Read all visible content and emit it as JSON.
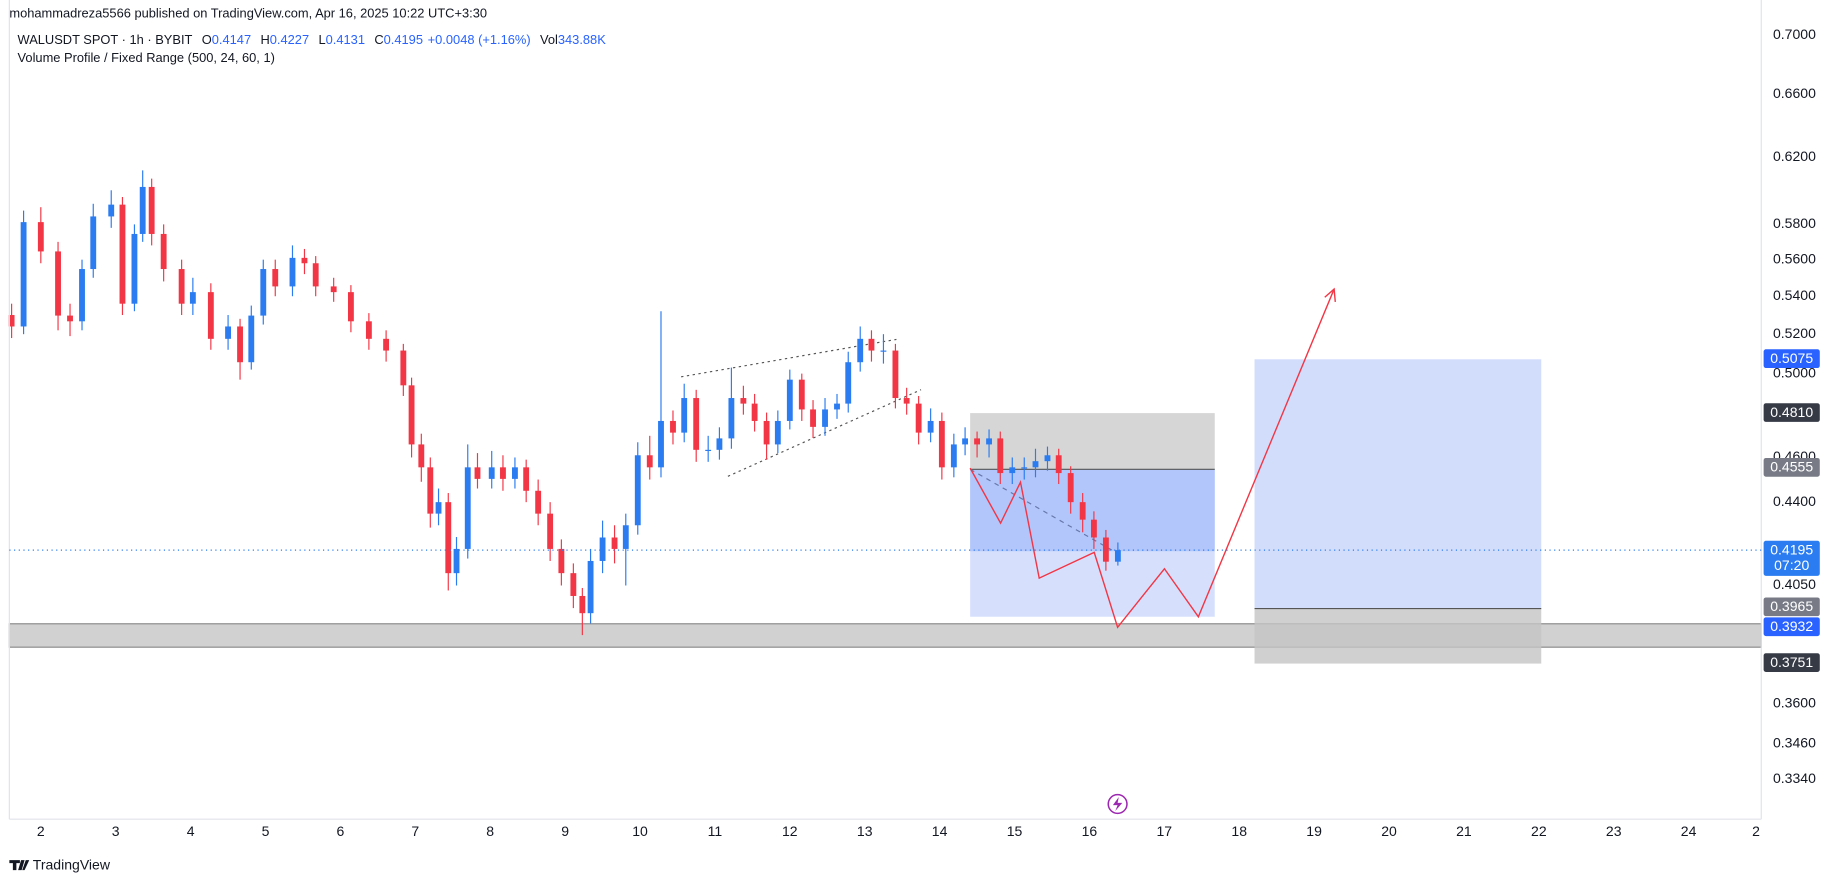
{
  "header": {
    "publisher": "mohammadreza5566 published on TradingView.com, Apr 16, 2025 10:22 UTC+3:30",
    "symbol": "WALUSDT SPOT · 1h · BYBIT",
    "o_label": "O",
    "h_label": "H",
    "l_label": "L",
    "c_label": "C",
    "change": "+0.0048 (+1.16%)",
    "vol_label": "Vol",
    "volume": "343.88K",
    "indicator": "Volume Profile / Fixed Range (500, 24, 60, 1)"
  },
  "footer": {
    "brand": "TradingView"
  },
  "chart_data": {
    "type": "candlestick",
    "log_scale": true,
    "grid": false,
    "up_color": "#2a7cf0",
    "down_color": "#f23645",
    "xlim": [
      -0.42,
      22.97
    ],
    "ylim": [
      0.321,
      0.725
    ],
    "xticks": [
      {
        "value": 0,
        "label": "2"
      },
      {
        "value": 1,
        "label": "3"
      },
      {
        "value": 2,
        "label": "4"
      },
      {
        "value": 3,
        "label": "5"
      },
      {
        "value": 4,
        "label": "6"
      },
      {
        "value": 5,
        "label": "7"
      },
      {
        "value": 6,
        "label": "8"
      },
      {
        "value": 7,
        "label": "9"
      },
      {
        "value": 8,
        "label": "10"
      },
      {
        "value": 9,
        "label": "11"
      },
      {
        "value": 10,
        "label": "12"
      },
      {
        "value": 11,
        "label": "13"
      },
      {
        "value": 12,
        "label": "14"
      },
      {
        "value": 13,
        "label": "15"
      },
      {
        "value": 14,
        "label": "16"
      },
      {
        "value": 15,
        "label": "17"
      },
      {
        "value": 16,
        "label": "18"
      },
      {
        "value": 17,
        "label": "19"
      },
      {
        "value": 18,
        "label": "20"
      },
      {
        "value": 19,
        "label": "21"
      },
      {
        "value": 20,
        "label": "22"
      },
      {
        "value": 21,
        "label": "23"
      },
      {
        "value": 22,
        "label": "24"
      },
      {
        "value": 22.9,
        "label": "2"
      }
    ],
    "yticks": [
      {
        "value": 0.7,
        "label": "0.7000"
      },
      {
        "value": 0.66,
        "label": "0.6600"
      },
      {
        "value": 0.62,
        "label": "0.6200"
      },
      {
        "value": 0.58,
        "label": "0.5800"
      },
      {
        "value": 0.56,
        "label": "0.5600"
      },
      {
        "value": 0.54,
        "label": "0.5400"
      },
      {
        "value": 0.52,
        "label": "0.5200"
      },
      {
        "value": 0.5,
        "label": "0.5000"
      },
      {
        "value": 0.46,
        "label": "0.4600"
      },
      {
        "value": 0.44,
        "label": "0.4400"
      },
      {
        "value": 0.405,
        "label": "0.4050"
      },
      {
        "value": 0.36,
        "label": "0.3600"
      },
      {
        "value": 0.346,
        "label": "0.3460"
      },
      {
        "value": 0.334,
        "label": "0.3340"
      }
    ],
    "x": [
      -0.39,
      -0.23,
      0,
      0.23,
      0.39,
      0.55,
      0.7,
      0.94,
      1.09,
      1.25,
      1.36,
      1.48,
      1.64,
      1.88,
      2.03,
      2.27,
      2.5,
      2.66,
      2.81,
      2.97,
      3.13,
      3.36,
      3.52,
      3.67,
      3.91,
      4.14,
      4.38,
      4.61,
      4.84,
      4.95,
      5.08,
      5.2,
      5.31,
      5.44,
      5.55,
      5.7,
      5.83,
      6.02,
      6.17,
      6.33,
      6.48,
      6.64,
      6.8,
      6.95,
      7.11,
      7.23,
      7.34,
      7.5,
      7.66,
      7.81,
      7.97,
      8.13,
      8.28,
      8.44,
      8.59,
      8.75,
      8.91,
      9.06,
      9.22,
      9.38,
      9.53,
      9.69,
      9.84,
      10.0,
      10.16,
      10.31,
      10.47,
      10.63,
      10.78,
      10.94,
      11.09,
      11.25,
      11.41,
      11.56,
      11.72,
      11.88,
      12.03,
      12.19,
      12.34,
      12.5,
      12.66,
      12.81,
      12.97,
      13.13,
      13.28,
      13.44,
      13.59,
      13.75,
      13.91,
      14.06,
      14.22,
      14.38
    ],
    "open": [
      0.53,
      0.524,
      0.5813,
      0.5646,
      0.5297,
      0.5267,
      0.5548,
      0.5846,
      0.5915,
      0.536,
      0.5745,
      0.602,
      0.5745,
      0.5548,
      0.536,
      0.5422,
      0.5176,
      0.524,
      0.5057,
      0.5297,
      0.5548,
      0.5453,
      0.561,
      0.558,
      0.5453,
      0.5422,
      0.5267,
      0.5176,
      0.5116,
      0.4942,
      0.466,
      0.4555,
      0.435,
      0.44,
      0.41,
      0.42,
      0.4555,
      0.4503,
      0.4555,
      0.4503,
      0.4555,
      0.445,
      0.435,
      0.42,
      0.41,
      0.4008,
      0.394,
      0.415,
      0.4248,
      0.42,
      0.43,
      0.461,
      0.4555,
      0.477,
      0.4715,
      0.488,
      0.4635,
      0.4635,
      0.4688,
      0.488,
      0.4853,
      0.477,
      0.466,
      0.477,
      0.497,
      0.4825,
      0.4742,
      0.4825,
      0.4853,
      0.5057,
      0.5176,
      0.5116,
      0.5116,
      0.488,
      0.4853,
      0.4715,
      0.477,
      0.4555,
      0.466,
      0.4688,
      0.466,
      0.4688,
      0.4529,
      0.4555,
      0.4555,
      0.4583,
      0.461,
      0.4529,
      0.44,
      0.4324,
      0.4248,
      0.4147
    ],
    "high": [
      0.536,
      0.588,
      0.59,
      0.57,
      0.536,
      0.56,
      0.592,
      0.6,
      0.596,
      0.58,
      0.612,
      0.607,
      0.58,
      0.56,
      0.55,
      0.547,
      0.53,
      0.528,
      0.535,
      0.56,
      0.56,
      0.568,
      0.566,
      0.562,
      0.55,
      0.546,
      0.531,
      0.522,
      0.515,
      0.498,
      0.471,
      0.46,
      0.446,
      0.444,
      0.425,
      0.466,
      0.462,
      0.463,
      0.461,
      0.46,
      0.459,
      0.45,
      0.44,
      0.424,
      0.414,
      0.404,
      0.42,
      0.432,
      0.43,
      0.435,
      0.467,
      0.47,
      0.532,
      0.482,
      0.495,
      0.492,
      0.47,
      0.474,
      0.503,
      0.494,
      0.49,
      0.481,
      0.482,
      0.502,
      0.5,
      0.487,
      0.488,
      0.49,
      0.511,
      0.524,
      0.522,
      0.52,
      0.515,
      0.493,
      0.489,
      0.483,
      0.481,
      0.471,
      0.474,
      0.472,
      0.473,
      0.472,
      0.46,
      0.46,
      0.464,
      0.465,
      0.464,
      0.456,
      0.444,
      0.436,
      0.428,
      0.4227
    ],
    "low": [
      0.518,
      0.52,
      0.558,
      0.522,
      0.519,
      0.522,
      0.55,
      0.578,
      0.53,
      0.532,
      0.57,
      0.568,
      0.548,
      0.53,
      0.53,
      0.512,
      0.512,
      0.497,
      0.502,
      0.525,
      0.54,
      0.54,
      0.552,
      0.54,
      0.537,
      0.521,
      0.512,
      0.506,
      0.489,
      0.46,
      0.449,
      0.429,
      0.43,
      0.403,
      0.405,
      0.416,
      0.446,
      0.446,
      0.445,
      0.446,
      0.44,
      0.43,
      0.415,
      0.405,
      0.396,
      0.3855,
      0.39,
      0.41,
      0.414,
      0.405,
      0.426,
      0.45,
      0.451,
      0.466,
      0.467,
      0.458,
      0.458,
      0.459,
      0.464,
      0.48,
      0.472,
      0.459,
      0.462,
      0.473,
      0.477,
      0.469,
      0.47,
      0.478,
      0.481,
      0.501,
      0.506,
      0.505,
      0.483,
      0.48,
      0.466,
      0.467,
      0.45,
      0.451,
      0.461,
      0.46,
      0.46,
      0.448,
      0.448,
      0.45,
      0.451,
      0.454,
      0.448,
      0.435,
      0.427,
      0.42,
      0.411,
      0.4131
    ],
    "close": [
      0.524,
      0.5813,
      0.5646,
      0.5297,
      0.5267,
      0.5548,
      0.5846,
      0.5915,
      0.536,
      0.5745,
      0.602,
      0.5745,
      0.5548,
      0.536,
      0.5422,
      0.5176,
      0.524,
      0.5057,
      0.5297,
      0.5548,
      0.5453,
      0.561,
      0.558,
      0.5453,
      0.5422,
      0.5267,
      0.5176,
      0.5116,
      0.4942,
      0.466,
      0.4555,
      0.435,
      0.44,
      0.41,
      0.42,
      0.4555,
      0.4503,
      0.4555,
      0.4503,
      0.4555,
      0.445,
      0.435,
      0.42,
      0.41,
      0.4008,
      0.394,
      0.415,
      0.4248,
      0.42,
      0.43,
      0.461,
      0.4555,
      0.477,
      0.4715,
      0.488,
      0.4635,
      0.4635,
      0.4688,
      0.488,
      0.4853,
      0.477,
      0.466,
      0.477,
      0.497,
      0.4825,
      0.4742,
      0.4825,
      0.4853,
      0.5057,
      0.5176,
      0.5116,
      0.5116,
      0.488,
      0.4853,
      0.4715,
      0.477,
      0.4555,
      0.466,
      0.4688,
      0.466,
      0.4688,
      0.4529,
      0.4555,
      0.4555,
      0.4583,
      0.461,
      0.4529,
      0.44,
      0.4324,
      0.4248,
      0.4147,
      0.4195
    ],
    "countdown": "07:20",
    "price_labels": [
      {
        "value": 0.5075,
        "color": "#2962ff"
      },
      {
        "value": 0.481,
        "label": "0.4810",
        "color": "#363a45"
      },
      {
        "value": 0.4555,
        "color": "#787b86"
      },
      {
        "value": 0.3965,
        "color": "#787b86"
      },
      {
        "value": 0.3932,
        "color": "#2962ff"
      },
      {
        "value": 0.3751,
        "color": "#363a45"
      }
    ]
  }
}
